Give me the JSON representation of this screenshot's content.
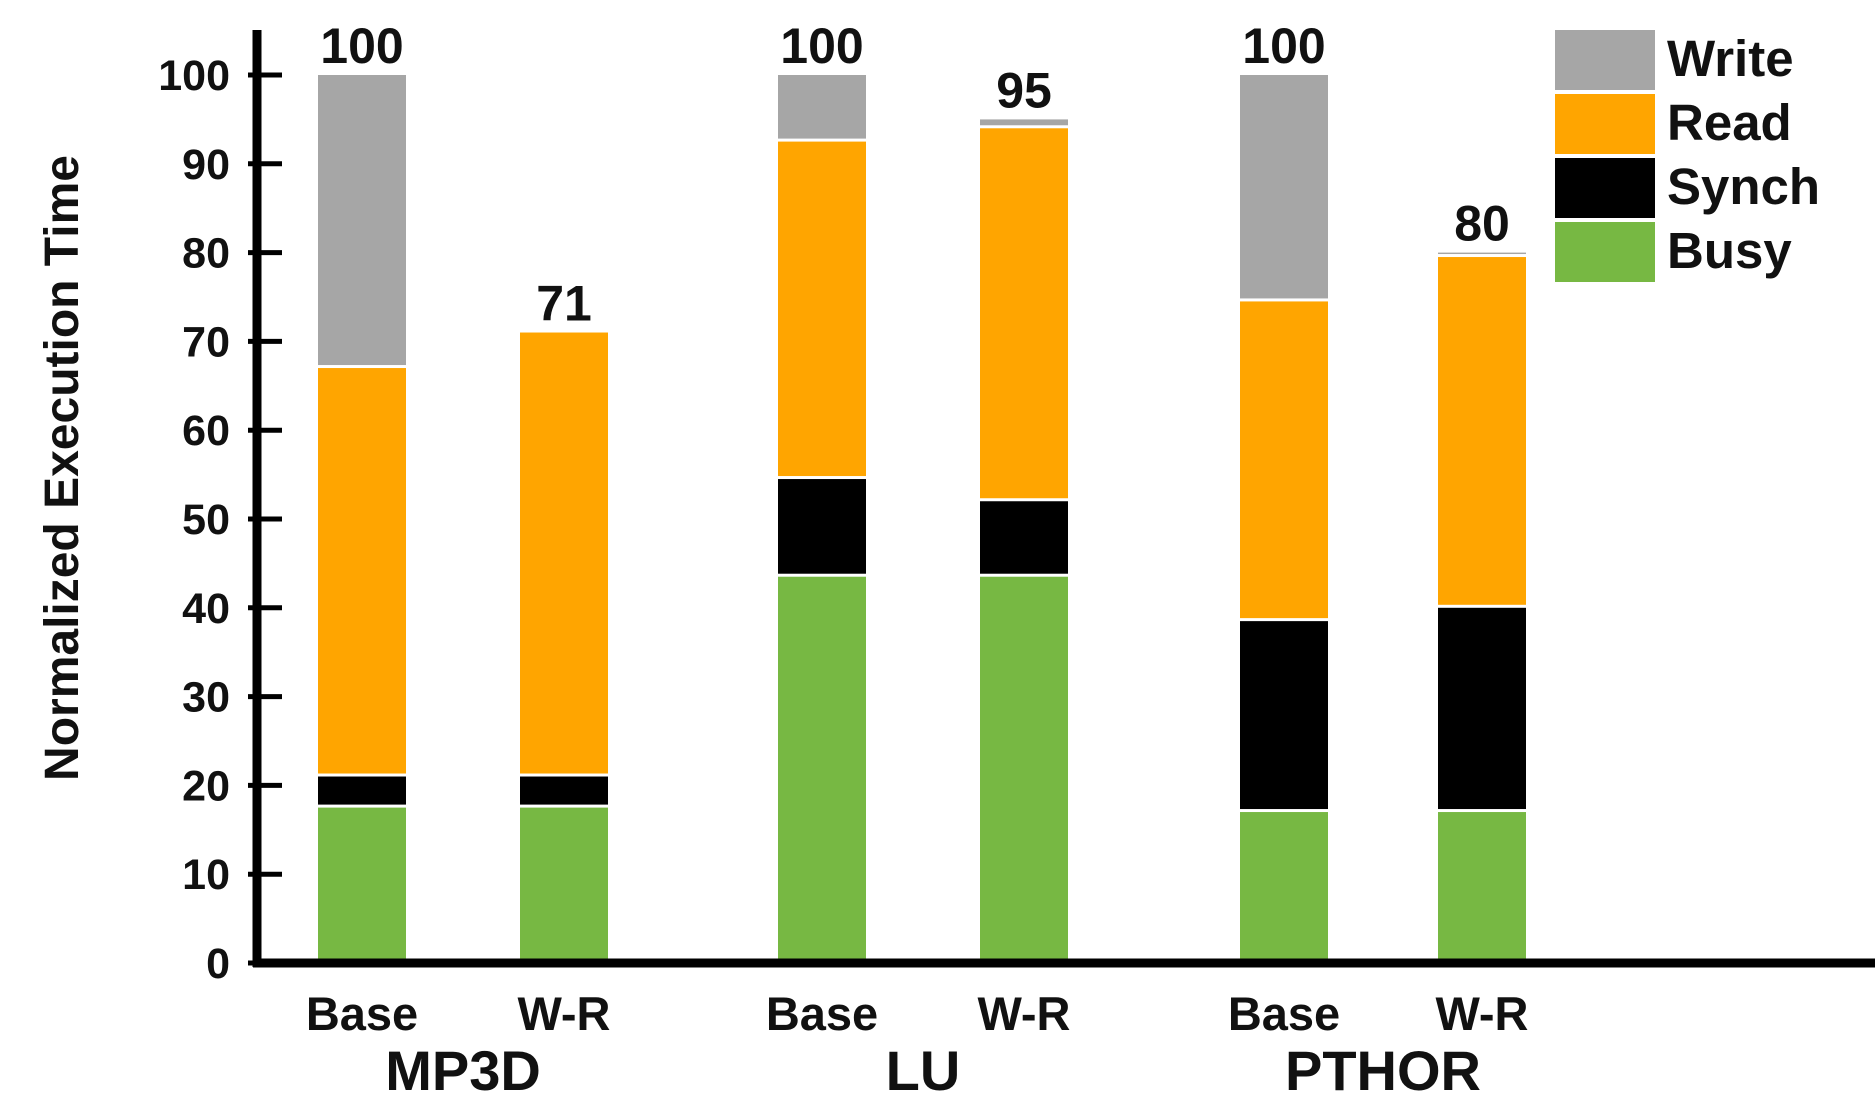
{
  "chart_data": {
    "type": "bar",
    "stacked": true,
    "ylabel": "Normalized Execution Time",
    "xlabel": "",
    "ylim": [
      0,
      100
    ],
    "yticks": [
      0,
      10,
      20,
      30,
      40,
      50,
      60,
      70,
      80,
      90,
      100
    ],
    "grid": false,
    "legend_position": "top-right",
    "groups": [
      {
        "name": "MP3D",
        "bars": [
          {
            "label": "Base",
            "total": 100,
            "total_label": "100",
            "segments": {
              "Busy": 17.5,
              "Synch": 3.5,
              "Read": 46,
              "Write": 33
            }
          },
          {
            "label": "W-R",
            "total": 71,
            "total_label": "71",
            "segments": {
              "Busy": 17.5,
              "Synch": 3.5,
              "Read": 50,
              "Write": 0
            }
          }
        ]
      },
      {
        "name": "LU",
        "bars": [
          {
            "label": "Base",
            "total": 100,
            "total_label": "100",
            "segments": {
              "Busy": 43.5,
              "Synch": 11,
              "Read": 38,
              "Write": 7.5
            }
          },
          {
            "label": "W-R",
            "total": 95,
            "total_label": "95",
            "segments": {
              "Busy": 43.5,
              "Synch": 8.5,
              "Read": 42,
              "Write": 1
            }
          }
        ]
      },
      {
        "name": "PTHOR",
        "bars": [
          {
            "label": "Base",
            "total": 100,
            "total_label": "100",
            "segments": {
              "Busy": 17,
              "Synch": 21.5,
              "Read": 36,
              "Write": 25.5
            }
          },
          {
            "label": "W-R",
            "total": 80,
            "total_label": "80",
            "segments": {
              "Busy": 17,
              "Synch": 23,
              "Read": 39.5,
              "Write": 0.5
            }
          }
        ]
      }
    ],
    "series": [
      {
        "name": "Write",
        "color": "#a6a6a6"
      },
      {
        "name": "Read",
        "color": "#ffa500"
      },
      {
        "name": "Synch",
        "color": "#000000"
      },
      {
        "name": "Busy",
        "color": "#77b843"
      }
    ]
  }
}
